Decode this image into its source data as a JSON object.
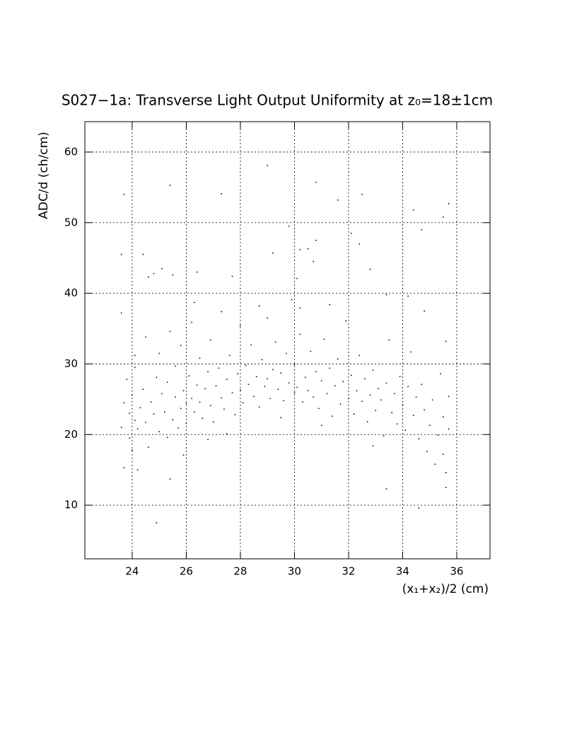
{
  "chart_data": {
    "type": "scatter",
    "title": "S027−1a: Transverse Light Output Uniformity at z₀=18±1cm",
    "x_label": "(x₁+x₂)/2 (cm)",
    "y_label": "ADC/d (ch/cm)",
    "color": "#000000",
    "grid": true,
    "xlim": [
      22.25,
      37.23
    ],
    "ylim": [
      2.4,
      64.3
    ],
    "xticks": [
      24,
      26,
      28,
      30,
      32,
      34,
      36
    ],
    "yticks": [
      10,
      20,
      30,
      40,
      50,
      60
    ],
    "x": [
      23.6,
      23.7,
      24.4,
      24.6,
      24.8,
      25.1,
      25.4,
      25.5,
      26.4,
      27.3,
      27.7,
      29.0,
      29.2,
      29.8,
      30.1,
      30.2,
      30.5,
      30.7,
      30.8,
      30.8,
      31.6,
      32.1,
      32.4,
      32.5,
      32.8,
      34.4,
      34.7,
      35.5,
      35.7,
      24.9,
      34.6,
      25.4,
      33.4,
      23.7,
      35.6,
      24.2,
      23.6,
      23.7,
      23.8,
      23.9,
      23.9,
      24.0,
      24.1,
      24.1,
      24.2,
      24.3,
      24.4,
      24.5,
      24.5,
      23.6,
      24.0,
      24.6,
      24.7,
      24.8,
      24.9,
      25.0,
      25.0,
      25.1,
      25.2,
      25.3,
      25.3,
      25.4,
      25.5,
      25.6,
      25.6,
      25.7,
      25.8,
      25.8,
      25.9,
      26.0,
      26.0,
      26.1,
      26.2,
      26.2,
      26.3,
      26.4,
      26.5,
      26.5,
      26.6,
      26.7,
      26.8,
      26.9,
      26.9,
      27.0,
      27.1,
      27.2,
      27.3,
      27.3,
      27.4,
      27.5,
      27.6,
      27.7,
      27.8,
      27.9,
      28.0,
      28.0,
      28.1,
      28.2,
      28.3,
      28.4,
      28.5,
      28.6,
      28.7,
      28.8,
      28.9,
      29.0,
      29.0,
      29.1,
      29.2,
      29.3,
      29.4,
      29.5,
      29.6,
      29.7,
      29.8,
      29.9,
      30.0,
      30.0,
      30.1,
      30.2,
      30.3,
      30.4,
      30.5,
      30.6,
      30.7,
      30.8,
      30.9,
      31.0,
      31.1,
      31.2,
      31.3,
      31.4,
      31.5,
      31.6,
      31.7,
      31.8,
      31.9,
      32.0,
      32.1,
      32.2,
      32.3,
      32.4,
      32.5,
      32.6,
      32.7,
      32.8,
      32.9,
      33.0,
      33.1,
      33.2,
      33.3,
      33.4,
      33.5,
      33.6,
      33.7,
      33.8,
      33.9,
      34.0,
      34.1,
      34.2,
      34.3,
      34.4,
      34.5,
      34.6,
      34.7,
      34.8,
      34.9,
      35.0,
      35.1,
      35.2,
      35.3,
      35.4,
      35.5,
      35.5,
      35.6,
      35.6,
      35.7,
      35.7,
      34.8,
      34.2,
      33.4,
      26.3,
      28.7,
      31.3,
      30.2,
      24.1,
      26.8,
      29.5,
      32.9,
      31.0,
      27.5,
      25.9
    ],
    "values": [
      45.5,
      54,
      45.5,
      42.3,
      42.8,
      43.5,
      55.3,
      42.6,
      43,
      54.1,
      42.4,
      58.1,
      45.7,
      49.5,
      42.1,
      46.2,
      46.3,
      44.5,
      47.5,
      55.7,
      53.2,
      48.5,
      47,
      54,
      43.4,
      51.8,
      49,
      50.8,
      52.7,
      7.5,
      9.6,
      13.7,
      12.3,
      15.3,
      12.5,
      15,
      21,
      24.5,
      27.8,
      19.5,
      23,
      25.6,
      22,
      29.5,
      20.8,
      23.8,
      26.4,
      21.7,
      33.8,
      37.2,
      17.8,
      18.2,
      24.6,
      22.9,
      28.1,
      20.4,
      31.5,
      25.8,
      23.2,
      19.6,
      27.4,
      34.6,
      22.1,
      25.3,
      29.7,
      20.9,
      23.7,
      32.6,
      26.2,
      24.4,
      21.6,
      28.3,
      25.1,
      35.9,
      23.2,
      27,
      24.6,
      30.8,
      22.3,
      26.5,
      28.9,
      24.1,
      33.4,
      21.8,
      26.9,
      29.4,
      25.2,
      37.4,
      23.6,
      27.8,
      31.2,
      25.9,
      22.8,
      28.6,
      35.4,
      26.3,
      24.5,
      29.8,
      27.1,
      32.7,
      25.4,
      28.2,
      23.9,
      30.6,
      26.8,
      36.5,
      27.9,
      25.1,
      29.2,
      33.1,
      26.4,
      28.7,
      24.8,
      31.5,
      27.3,
      39.1,
      25.9,
      29.9,
      26.7,
      34.2,
      24.6,
      28.1,
      26.2,
      31.8,
      25.3,
      28.9,
      23.7,
      27.6,
      33.5,
      25.8,
      29.4,
      22.6,
      26.9,
      30.7,
      24.3,
      27.5,
      36.1,
      25.1,
      28.4,
      22.9,
      26.2,
      31.2,
      24.7,
      27.9,
      21.8,
      25.6,
      29.1,
      23.4,
      26.5,
      24.9,
      19.8,
      27.3,
      33.4,
      23.1,
      25.8,
      21.5,
      28.2,
      24.2,
      20.6,
      26.8,
      31.7,
      22.7,
      25.3,
      19.4,
      27.1,
      23.5,
      17.6,
      21.3,
      24.9,
      15.8,
      19.9,
      28.6,
      17.2,
      22.5,
      33.2,
      14.6,
      20.8,
      25.4,
      37.5,
      39.6,
      39.8,
      38.7,
      38.2,
      38.4,
      37.9,
      31.2,
      19.3,
      22.4,
      18.4,
      21.3,
      20.1,
      17.1
    ]
  }
}
